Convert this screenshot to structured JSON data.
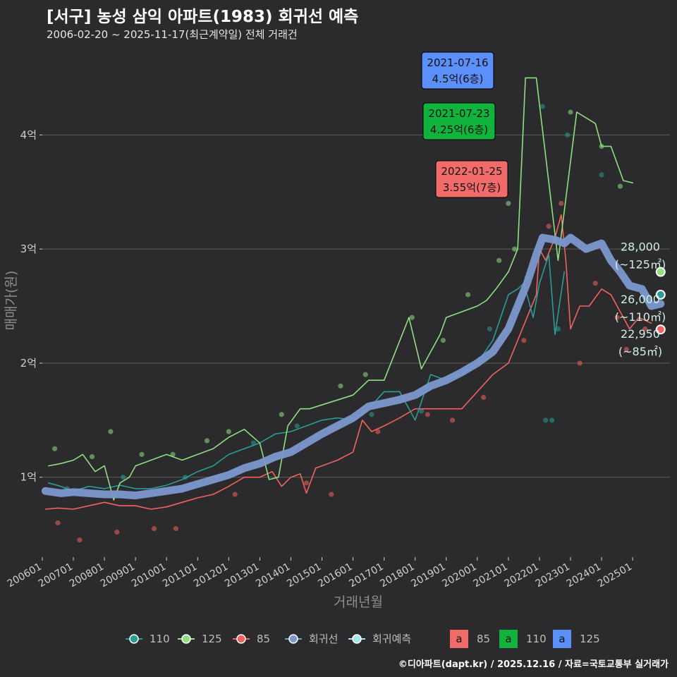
{
  "title": "[서구] 농성 삼익 아파트(1983) 회귀선 예측",
  "subtitle": "2006-02-20 ~ 2025-11-17(최근계약일) 전체 거래건",
  "footer": "©디아파트(dapt.kr) / 2025.12.16 / 자료=국토교통부 실거래가",
  "chart_data": {
    "type": "line",
    "xlabel": "거래년월",
    "ylabel": "매매가(원)",
    "x_range": [
      "2006-01",
      "2026-03"
    ],
    "ylim": [
      0.3,
      4.75
    ],
    "y_ticks": [
      {
        "v": 1,
        "label": "1억"
      },
      {
        "v": 2,
        "label": "2억"
      },
      {
        "v": 3,
        "label": "3억"
      },
      {
        "v": 4,
        "label": "4억"
      }
    ],
    "x_ticks": [
      "200601",
      "200701",
      "200801",
      "200901",
      "201001",
      "201101",
      "201201",
      "201301",
      "201401",
      "201501",
      "201601",
      "201701",
      "201801",
      "201901",
      "202001",
      "202101",
      "202201",
      "202301",
      "202401",
      "202501"
    ],
    "colors": {
      "s85": "#f2625f",
      "s110": "#2b9d98",
      "s125": "#8ee07f",
      "regression": "#7c98cf",
      "forecast": "#a6e6e6"
    },
    "series": [
      {
        "name": "85",
        "color": "#f2625f",
        "points": [
          [
            2006.1,
            0.72
          ],
          [
            2006.5,
            0.73
          ],
          [
            2007.0,
            0.72
          ],
          [
            2007.5,
            0.75
          ],
          [
            2008.0,
            0.78
          ],
          [
            2008.5,
            0.75
          ],
          [
            2009.0,
            0.75
          ],
          [
            2009.5,
            0.72
          ],
          [
            2010.0,
            0.74
          ],
          [
            2010.5,
            0.78
          ],
          [
            2011.0,
            0.82
          ],
          [
            2011.5,
            0.85
          ],
          [
            2012.0,
            0.92
          ],
          [
            2012.5,
            1.0
          ],
          [
            2013.0,
            1.0
          ],
          [
            2013.4,
            1.05
          ],
          [
            2013.7,
            0.92
          ],
          [
            2014.0,
            1.0
          ],
          [
            2014.3,
            1.03
          ],
          [
            2014.5,
            0.86
          ],
          [
            2014.8,
            1.08
          ],
          [
            2015.0,
            1.1
          ],
          [
            2015.5,
            1.15
          ],
          [
            2016.0,
            1.22
          ],
          [
            2016.3,
            1.5
          ],
          [
            2016.6,
            1.4
          ],
          [
            2017.0,
            1.45
          ],
          [
            2017.5,
            1.52
          ],
          [
            2018.0,
            1.6
          ],
          [
            2018.5,
            1.6
          ],
          [
            2019.0,
            1.6
          ],
          [
            2019.5,
            1.6
          ],
          [
            2020.0,
            1.75
          ],
          [
            2020.5,
            1.9
          ],
          [
            2021.0,
            2.0
          ],
          [
            2021.3,
            2.2
          ],
          [
            2021.6,
            2.4
          ],
          [
            2021.9,
            2.6
          ],
          [
            2022.0,
            3.0
          ],
          [
            2022.2,
            2.9
          ],
          [
            2022.5,
            3.1
          ],
          [
            2022.7,
            3.3
          ],
          [
            2022.85,
            2.9
          ],
          [
            2023.0,
            2.3
          ],
          [
            2023.3,
            2.5
          ],
          [
            2023.6,
            2.5
          ],
          [
            2024.0,
            2.65
          ],
          [
            2024.3,
            2.6
          ],
          [
            2024.6,
            2.45
          ],
          [
            2024.9,
            2.3
          ],
          [
            2025.2,
            2.4
          ],
          [
            2025.6,
            2.35
          ]
        ]
      },
      {
        "name": "110",
        "color": "#2b9d98",
        "points": [
          [
            2006.2,
            0.95
          ],
          [
            2006.6,
            0.92
          ],
          [
            2007.0,
            0.88
          ],
          [
            2007.5,
            0.92
          ],
          [
            2008.0,
            0.9
          ],
          [
            2008.5,
            0.93
          ],
          [
            2009.0,
            0.9
          ],
          [
            2009.5,
            0.9
          ],
          [
            2010.0,
            0.93
          ],
          [
            2010.5,
            0.98
          ],
          [
            2011.0,
            1.05
          ],
          [
            2011.5,
            1.1
          ],
          [
            2012.0,
            1.2
          ],
          [
            2012.5,
            1.25
          ],
          [
            2013.0,
            1.3
          ],
          [
            2013.5,
            1.38
          ],
          [
            2014.0,
            1.4
          ],
          [
            2014.5,
            1.45
          ],
          [
            2015.0,
            1.5
          ],
          [
            2015.5,
            1.52
          ],
          [
            2016.0,
            1.5
          ],
          [
            2016.5,
            1.6
          ],
          [
            2017.0,
            1.75
          ],
          [
            2017.5,
            1.75
          ],
          [
            2018.0,
            1.5
          ],
          [
            2018.5,
            1.9
          ],
          [
            2019.0,
            1.85
          ],
          [
            2019.5,
            1.9
          ],
          [
            2020.0,
            2.0
          ],
          [
            2020.5,
            2.2
          ],
          [
            2021.0,
            2.6
          ],
          [
            2021.3,
            2.65
          ],
          [
            2021.5,
            2.7
          ],
          [
            2021.8,
            2.4
          ],
          [
            2022.0,
            2.7
          ],
          [
            2022.3,
            2.95
          ],
          [
            2022.5,
            2.25
          ],
          [
            2022.8,
            2.8
          ]
        ]
      },
      {
        "name": "125",
        "color": "#8ee07f",
        "points": [
          [
            2006.2,
            1.1
          ],
          [
            2006.6,
            1.12
          ],
          [
            2007.0,
            1.15
          ],
          [
            2007.3,
            1.2
          ],
          [
            2007.7,
            1.05
          ],
          [
            2008.0,
            1.1
          ],
          [
            2008.3,
            0.8
          ],
          [
            2008.5,
            0.95
          ],
          [
            2008.8,
            1.0
          ],
          [
            2009.0,
            1.1
          ],
          [
            2009.5,
            1.15
          ],
          [
            2010.0,
            1.2
          ],
          [
            2010.5,
            1.15
          ],
          [
            2011.0,
            1.2
          ],
          [
            2011.5,
            1.25
          ],
          [
            2012.0,
            1.35
          ],
          [
            2012.5,
            1.42
          ],
          [
            2013.0,
            1.3
          ],
          [
            2013.3,
            0.98
          ],
          [
            2013.6,
            1.0
          ],
          [
            2013.9,
            1.45
          ],
          [
            2014.3,
            1.6
          ],
          [
            2014.6,
            1.6
          ],
          [
            2016.0,
            1.72
          ],
          [
            2016.5,
            1.85
          ],
          [
            2017.0,
            1.85
          ],
          [
            2017.8,
            2.4
          ],
          [
            2018.2,
            1.95
          ],
          [
            2018.8,
            2.25
          ],
          [
            2019.0,
            2.4
          ],
          [
            2019.5,
            2.45
          ],
          [
            2020.0,
            2.5
          ],
          [
            2020.3,
            2.55
          ],
          [
            2020.6,
            2.65
          ],
          [
            2021.0,
            2.8
          ],
          [
            2021.3,
            3.0
          ],
          [
            2021.55,
            4.5
          ],
          [
            2021.9,
            4.5
          ],
          [
            2022.6,
            2.9
          ],
          [
            2023.2,
            4.2
          ],
          [
            2023.5,
            4.15
          ],
          [
            2023.8,
            4.1
          ],
          [
            2024.0,
            3.9
          ],
          [
            2024.3,
            3.9
          ],
          [
            2024.7,
            3.6
          ],
          [
            2025.0,
            3.58
          ]
        ]
      },
      {
        "name": "회귀선",
        "color": "#7c98cf",
        "points": [
          [
            2006.1,
            0.88
          ],
          [
            2006.6,
            0.86
          ],
          [
            2007.0,
            0.87
          ],
          [
            2007.5,
            0.86
          ],
          [
            2008.0,
            0.85
          ],
          [
            2008.5,
            0.85
          ],
          [
            2009.0,
            0.84
          ],
          [
            2009.5,
            0.86
          ],
          [
            2010.0,
            0.88
          ],
          [
            2010.5,
            0.9
          ],
          [
            2011.0,
            0.94
          ],
          [
            2011.5,
            0.98
          ],
          [
            2012.0,
            1.02
          ],
          [
            2012.5,
            1.08
          ],
          [
            2013.0,
            1.12
          ],
          [
            2013.5,
            1.18
          ],
          [
            2014.0,
            1.22
          ],
          [
            2014.5,
            1.3
          ],
          [
            2015.0,
            1.38
          ],
          [
            2015.5,
            1.45
          ],
          [
            2016.0,
            1.52
          ],
          [
            2016.5,
            1.62
          ],
          [
            2017.0,
            1.65
          ],
          [
            2017.5,
            1.68
          ],
          [
            2018.0,
            1.72
          ],
          [
            2018.5,
            1.8
          ],
          [
            2019.0,
            1.85
          ],
          [
            2019.5,
            1.92
          ],
          [
            2020.0,
            2.0
          ],
          [
            2020.5,
            2.1
          ],
          [
            2021.0,
            2.3
          ],
          [
            2021.3,
            2.5
          ],
          [
            2021.6,
            2.7
          ],
          [
            2021.9,
            2.95
          ],
          [
            2022.1,
            3.1
          ],
          [
            2022.5,
            3.08
          ],
          [
            2022.8,
            3.05
          ],
          [
            2023.0,
            3.1
          ],
          [
            2023.5,
            3.0
          ],
          [
            2024.0,
            3.05
          ],
          [
            2024.3,
            2.9
          ],
          [
            2024.6,
            2.8
          ],
          [
            2024.9,
            2.68
          ],
          [
            2025.3,
            2.65
          ],
          [
            2025.6,
            2.5
          ],
          [
            2025.9,
            2.52
          ]
        ]
      }
    ],
    "forecast_markers": [
      {
        "series": "125",
        "x": 2025.9,
        "y": 2.8,
        "value": "28,000",
        "area": "(~125㎡)"
      },
      {
        "series": "110",
        "x": 2025.9,
        "y": 2.6,
        "value": "26,000",
        "area": "(~110㎡)"
      },
      {
        "series": "85",
        "x": 2025.9,
        "y": 2.295,
        "value": "22,950",
        "area": "(~85㎡)"
      }
    ],
    "annotations": [
      {
        "date": "2021-07-16",
        "price": "4.5억(6층)",
        "x": 2021.54,
        "y": 4.5,
        "fill": "#5b8ff9"
      },
      {
        "date": "2021-07-23",
        "price": "4.25억(6층)",
        "x": 2021.56,
        "y": 4.25,
        "fill": "#12b33c"
      },
      {
        "date": "2022-01-25",
        "price": "3.55억(7층)",
        "x": 2022.07,
        "y": 3.55,
        "fill": "#f26b6b"
      }
    ],
    "scatter_points": {
      "85": [
        [
          2006.5,
          0.6
        ],
        [
          2007.2,
          0.45
        ],
        [
          2008.4,
          0.52
        ],
        [
          2009.6,
          0.55
        ],
        [
          2010.3,
          0.55
        ],
        [
          2012.2,
          0.85
        ],
        [
          2014.5,
          0.95
        ],
        [
          2015.3,
          0.85
        ],
        [
          2016.8,
          1.4
        ],
        [
          2018.4,
          1.55
        ],
        [
          2019.2,
          1.5
        ],
        [
          2020.2,
          1.7
        ],
        [
          2021.5,
          2.2
        ],
        [
          2022.3,
          3.2
        ],
        [
          2022.7,
          3.4
        ],
        [
          2023.3,
          2.0
        ],
        [
          2023.8,
          2.7
        ],
        [
          2024.5,
          2.4
        ],
        [
          2024.8,
          2.12
        ],
        [
          2025.4,
          2.3
        ]
      ],
      "110": [
        [
          2006.8,
          0.9
        ],
        [
          2008.6,
          1.0
        ],
        [
          2010.6,
          1.0
        ],
        [
          2012.8,
          1.3
        ],
        [
          2014.2,
          1.45
        ],
        [
          2016.6,
          1.55
        ],
        [
          2018.2,
          1.58
        ],
        [
          2019.6,
          1.95
        ],
        [
          2020.4,
          2.3
        ],
        [
          2021.6,
          2.75
        ],
        [
          2022.1,
          4.25
        ],
        [
          2022.2,
          1.5
        ],
        [
          2022.4,
          1.5
        ],
        [
          2022.6,
          2.3
        ],
        [
          2022.9,
          4.0
        ],
        [
          2024.0,
          3.65
        ]
      ],
      "125": [
        [
          2006.4,
          1.25
        ],
        [
          2007.6,
          1.18
        ],
        [
          2008.2,
          1.4
        ],
        [
          2009.2,
          1.2
        ],
        [
          2010.2,
          1.2
        ],
        [
          2011.3,
          1.32
        ],
        [
          2012.0,
          1.4
        ],
        [
          2013.7,
          1.55
        ],
        [
          2015.6,
          1.8
        ],
        [
          2016.4,
          1.9
        ],
        [
          2017.9,
          2.4
        ],
        [
          2018.9,
          2.2
        ],
        [
          2019.7,
          2.6
        ],
        [
          2020.7,
          2.9
        ],
        [
          2021.0,
          3.4
        ],
        [
          2021.2,
          3.0
        ],
        [
          2023.0,
          4.2
        ],
        [
          2024.0,
          3.9
        ],
        [
          2024.6,
          3.55
        ]
      ]
    }
  },
  "legend": {
    "items": [
      {
        "label": "110",
        "color": "#2b9d98"
      },
      {
        "label": "125",
        "color": "#8ee07f"
      },
      {
        "label": "85",
        "color": "#f2625f"
      },
      {
        "label": "회귀선",
        "color": "#7c98cf"
      },
      {
        "label": "회귀예측",
        "color": "#a6e6e6"
      }
    ],
    "boxes": [
      {
        "glyph": "a",
        "label": "85",
        "color": "#f26b6b"
      },
      {
        "glyph": "a",
        "label": "110",
        "color": "#12b33c"
      },
      {
        "glyph": "a",
        "label": "125",
        "color": "#5b8ff9"
      }
    ]
  }
}
